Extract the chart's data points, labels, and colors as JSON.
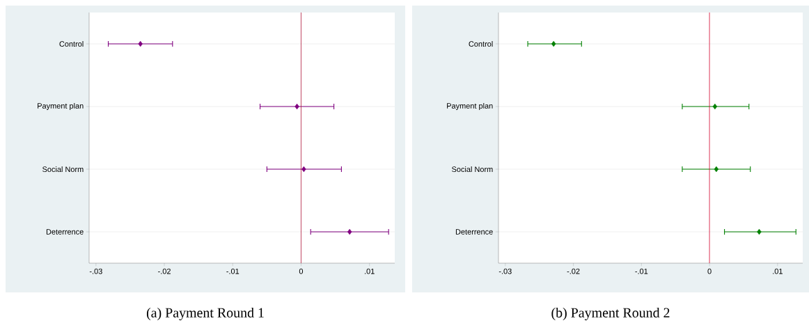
{
  "chart_data": [
    {
      "type": "scatter",
      "orientation": "horizontal",
      "categories": [
        "Control",
        "Payment plan",
        "Social Norm",
        "Deterrence"
      ],
      "values": [
        -0.0235,
        -0.0006,
        0.0004,
        0.0071
      ],
      "errors": [
        [
          -0.0282,
          -0.0188
        ],
        [
          -0.006,
          0.0048
        ],
        [
          -0.005,
          0.0059
        ],
        [
          0.0014,
          0.0128
        ]
      ],
      "color": "#800080",
      "marker": "diamond",
      "xlim": [
        -0.031,
        0.0137
      ],
      "xticks": [
        {
          "value": -0.03,
          "label": "-.03"
        },
        {
          "value": -0.02,
          "label": "-.02"
        },
        {
          "value": -0.01,
          "label": "-.01"
        },
        0,
        {
          "value": 0.01,
          "label": ".01"
        }
      ],
      "grid": "y",
      "ref_lines": [
        {
          "axis": "x",
          "value": 0,
          "color": "#b0193a"
        }
      ],
      "annotations": [
        "(a) Payment Round 1"
      ]
    },
    {
      "type": "scatter",
      "orientation": "horizontal",
      "categories": [
        "Control",
        "Payment plan",
        "Social Norm",
        "Deterrence"
      ],
      "values": [
        -0.0229,
        0.0008,
        0.001,
        0.0073
      ],
      "errors": [
        [
          -0.0267,
          -0.0188
        ],
        [
          -0.004,
          0.0058
        ],
        [
          -0.004,
          0.006
        ],
        [
          0.0022,
          0.0127
        ]
      ],
      "color": "#008000",
      "marker": "diamond",
      "xlim": [
        -0.031,
        0.0137
      ],
      "xticks": [
        {
          "value": -0.03,
          "label": "-.03"
        },
        {
          "value": -0.02,
          "label": "-.02"
        },
        {
          "value": -0.01,
          "label": "-.01"
        },
        0,
        {
          "value": 0.01,
          "label": ".01"
        }
      ],
      "grid": "y",
      "ref_lines": [
        {
          "axis": "x",
          "value": 0,
          "color": "#d0002a"
        }
      ],
      "annotations": [
        "(b) Payment Round 2"
      ]
    }
  ]
}
